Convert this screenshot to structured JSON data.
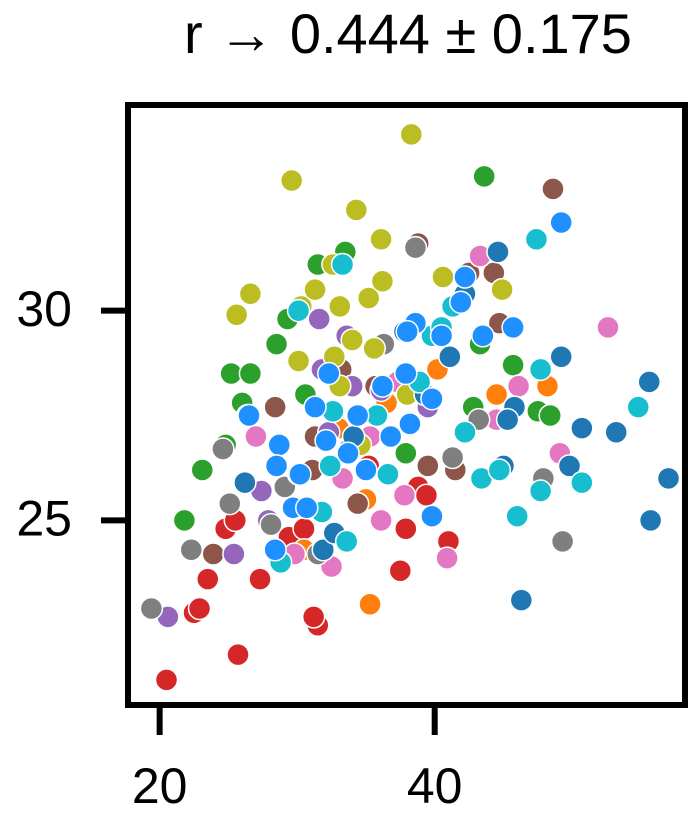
{
  "chart_data": {
    "type": "scatter",
    "title": "r → 0.444 ± 0.175",
    "xlim": [
      17.7,
      58.2
    ],
    "ylim": [
      20.6,
      34.9
    ],
    "xticks": [
      20,
      40
    ],
    "yticks": [
      25,
      30
    ],
    "series": [
      {
        "color": "#d62728",
        "x": [
          20.5,
          25.7,
          23.5,
          22.5,
          27.3,
          24.8,
          29.4,
          31.5,
          37.5,
          41,
          38.8,
          25.5,
          22.9,
          30.5,
          31.2,
          37.9,
          35.2,
          39.4
        ],
        "y": [
          21.2,
          21.8,
          23.6,
          22.8,
          23.6,
          24.8,
          24.6,
          22.5,
          23.8,
          24.5,
          25.8,
          25,
          22.9,
          24.8,
          22.7,
          24.8,
          26.3,
          25.6
        ]
      },
      {
        "color": "#ff7f0e",
        "x": [
          35.3,
          48.2,
          40.2,
          35,
          30.5,
          36.5,
          44.5,
          33
        ],
        "y": [
          23,
          28.2,
          28.6,
          25.5,
          24.3,
          27.8,
          28,
          27.2
        ]
      },
      {
        "color": "#2ca02c",
        "x": [
          23.1,
          21.8,
          24.8,
          25.2,
          26.6,
          28.5,
          29.3,
          26,
          31.5,
          33.5,
          43.6,
          37.9,
          42.8,
          47.5,
          45.7,
          30.6,
          43.3,
          48.4
        ],
        "y": [
          26.2,
          25,
          26.8,
          28.5,
          28.5,
          29.2,
          29.8,
          27.8,
          31.1,
          31.4,
          33.2,
          26.6,
          27.7,
          27.6,
          28.7,
          28,
          29.2,
          27.5
        ]
      },
      {
        "color": "#8c564b",
        "x": [
          48.6,
          44.3,
          41.5,
          39.5,
          34.4,
          23.9,
          28.4,
          31.3,
          35.7,
          38.8,
          42.5,
          44.7,
          31.1,
          33.2
        ],
        "y": [
          32.9,
          30.9,
          26.2,
          26.3,
          25.4,
          24.2,
          27.7,
          27,
          28.2,
          31.6,
          30.9,
          29.7,
          26.2,
          28.6
        ]
      },
      {
        "color": "#9467bd",
        "x": [
          20.6,
          25.4,
          27.4,
          31.8,
          33.6,
          34,
          38.6,
          27.9,
          36.1,
          31.6,
          32.3,
          39.5
        ],
        "y": [
          22.7,
          24.2,
          25.7,
          28.6,
          29.4,
          28.2,
          31.5,
          25,
          28.1,
          29.8,
          27.1,
          27.7
        ]
      },
      {
        "color": "#e377c2",
        "x": [
          52.6,
          49.1,
          46.1,
          43.3,
          44.5,
          37.3,
          35.3,
          37.8,
          36.1,
          29.8,
          40.9,
          27,
          33.3,
          32.5
        ],
        "y": [
          29.6,
          26.6,
          28.2,
          31.3,
          27.4,
          28.3,
          27,
          25.6,
          25,
          24.2,
          24.1,
          27,
          26,
          23.9
        ]
      },
      {
        "color": "#7f7f7f",
        "x": [
          19.4,
          22.3,
          25.1,
          24.6,
          29.1,
          31.5,
          49.3,
          47.9,
          43.2,
          41.3,
          38.6,
          36.3,
          28.1,
          33.8
        ],
        "y": [
          22.9,
          24.3,
          25.4,
          26.7,
          25.8,
          24.2,
          24.5,
          26,
          27.4,
          26.5,
          31.5,
          29.2,
          24.9,
          26.7
        ]
      },
      {
        "color": "#bcbd22",
        "x": [
          38.3,
          29.6,
          34.3,
          36.1,
          26.6,
          25.6,
          30.3,
          31.3,
          32.6,
          33.1,
          35.2,
          36.2,
          40.6,
          44.9,
          34,
          30.1,
          32.7,
          35.6,
          38,
          34.6,
          33.1
        ],
        "y": [
          34.2,
          33.1,
          32.4,
          31.7,
          30.4,
          29.9,
          30.1,
          30.5,
          31.1,
          30.1,
          30.3,
          30.7,
          30.8,
          30.5,
          29.3,
          28.8,
          28.9,
          29.1,
          28,
          26.8,
          28.2
        ]
      },
      {
        "color": "#1f77b4",
        "x": [
          46.3,
          55.7,
          57,
          53.2,
          55.6,
          49.2,
          50.7,
          49.8,
          45.8,
          45.3,
          41.1,
          42.2,
          44.6,
          45,
          31.9,
          32.7,
          26.2,
          34.1,
          37.8,
          39.3
        ],
        "y": [
          23.1,
          25,
          26,
          27.1,
          28.3,
          28.9,
          27.2,
          26.3,
          27.7,
          27.4,
          28.9,
          30.4,
          31.4,
          26.3,
          24.3,
          24.7,
          25.9,
          27,
          29.5,
          28
        ]
      },
      {
        "color": "#17becf",
        "x": [
          30.1,
          33.3,
          47.4,
          47.7,
          54.8,
          50.7,
          47.7,
          46,
          43.4,
          44.7,
          39.8,
          40.5,
          41.3,
          42.2,
          38.9,
          35.8,
          32.4,
          30.1,
          31.8,
          33.6,
          28.8,
          26.4,
          32.6,
          36.6
        ],
        "y": [
          30,
          31.1,
          31.7,
          28.6,
          27.7,
          25.9,
          25.7,
          25.1,
          26,
          26.2,
          29.4,
          29.6,
          30.1,
          27.1,
          28.3,
          27.5,
          26.3,
          26.1,
          25.2,
          24.5,
          24,
          27.5,
          27.6,
          26.1
        ]
      },
      {
        "color": "#1e90ff",
        "x": [
          49.2,
          42.2,
          41.9,
          40.5,
          45.7,
          43.5,
          38.6,
          38,
          37.9,
          36.2,
          39.8,
          38.2,
          36.8,
          34.4,
          32.3,
          28.7,
          28.5,
          30.2,
          31.3,
          33.7,
          35,
          29.7,
          30.7,
          28.4,
          39.8,
          26.5,
          32.1
        ],
        "y": [
          32.1,
          30.8,
          30.2,
          29.4,
          29.6,
          29.4,
          29.7,
          29.5,
          28.5,
          28.2,
          27.9,
          27.3,
          27,
          27.5,
          28.5,
          26.8,
          26.3,
          26.1,
          27.7,
          26.6,
          26.2,
          25.3,
          25.3,
          24.3,
          25.1,
          27.5,
          26.9
        ]
      }
    ]
  }
}
